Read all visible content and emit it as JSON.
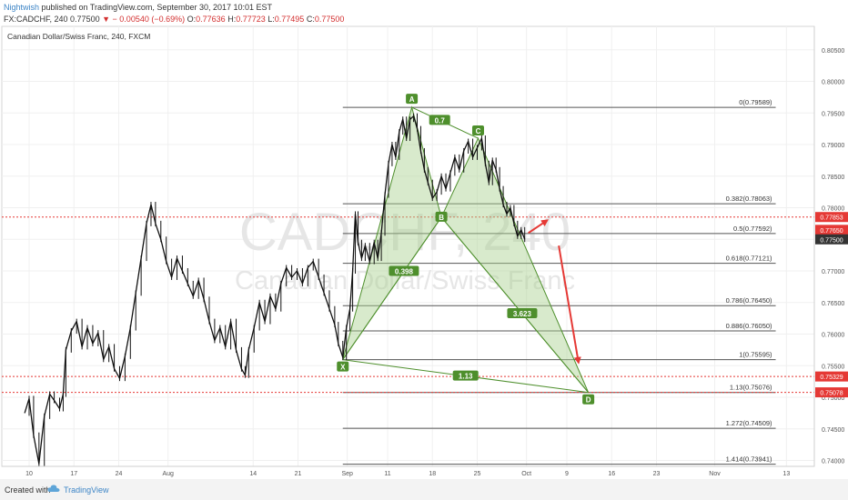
{
  "header": {
    "user": "Nightwish",
    "published": " published on TradingView.com, September 30, 2017 10:01 EST",
    "symbol": "FX:CADCHF, 240",
    "last": "0.77500",
    "change": "− 0.00540 (−0.69%)",
    "o_label": "O:",
    "o_val": "0.77636",
    "h_label": "H:",
    "h_val": "0.77723",
    "l_label": "L:",
    "l_val": "0.77495",
    "c_label": "C:",
    "c_val": "0.77500"
  },
  "footer": {
    "created": "Created with",
    "brand": "TradingView"
  },
  "colors": {
    "pattern_fill": "#a9d08e",
    "pattern_stroke": "#4e8f2c",
    "arrow": "#e53935",
    "price_tag": "#e53935",
    "last_tag": "#333333"
  },
  "chart_data": {
    "type": "candlestick",
    "title": "Canadian Dollar/Swiss Franc, 240, FXCM",
    "watermark_symbol": "CADCHF, 240",
    "watermark_name": "Canadian Dollar/Swiss Franc",
    "grid": true,
    "ylim": [
      0.7385,
      0.8095
    ],
    "y_ticks": [
      "0.80500",
      "0.80000",
      "0.79500",
      "0.79000",
      "0.78500",
      "0.78000",
      "0.77500",
      "0.77000",
      "0.76500",
      "0.76000",
      "0.75500",
      "0.75000",
      "0.74500",
      "0.74000"
    ],
    "y_tick_values": [
      0.805,
      0.8,
      0.795,
      0.79,
      0.785,
      0.78,
      0.775,
      0.77,
      0.765,
      0.76,
      0.755,
      0.75,
      0.745,
      0.74
    ],
    "x_ticks": [
      {
        "label": "10",
        "t": 0.5
      },
      {
        "label": "17",
        "t": 5.5
      },
      {
        "label": "24",
        "t": 10.5
      },
      {
        "label": "Aug",
        "t": 16
      },
      {
        "label": "14",
        "t": 25.5
      },
      {
        "label": "21",
        "t": 30.5
      },
      {
        "label": "Sep",
        "t": 36
      },
      {
        "label": "11",
        "t": 40.5
      },
      {
        "label": "18",
        "t": 45.5
      },
      {
        "label": "25",
        "t": 50.5
      },
      {
        "label": "Oct",
        "t": 56
      },
      {
        "label": "9",
        "t": 60.5
      },
      {
        "label": "16",
        "t": 65.5
      },
      {
        "label": "23",
        "t": 70.5
      },
      {
        "label": "Nov",
        "t": 77
      },
      {
        "label": "13",
        "t": 85
      }
    ],
    "price_series": [
      [
        0,
        0.7475
      ],
      [
        0.5,
        0.7498
      ],
      [
        1,
        0.744
      ],
      [
        1.6,
        0.7395
      ],
      [
        2.2,
        0.747
      ],
      [
        2.8,
        0.7505
      ],
      [
        3.3,
        0.7495
      ],
      [
        3.9,
        0.7482
      ],
      [
        4.3,
        0.7505
      ],
      [
        4.6,
        0.7575
      ],
      [
        5.2,
        0.7605
      ],
      [
        5.8,
        0.762
      ],
      [
        6.4,
        0.758
      ],
      [
        7.0,
        0.761
      ],
      [
        7.6,
        0.7585
      ],
      [
        8.2,
        0.7602
      ],
      [
        8.8,
        0.756
      ],
      [
        9.4,
        0.758
      ],
      [
        10.0,
        0.7545
      ],
      [
        10.6,
        0.753
      ],
      [
        11.2,
        0.7565
      ],
      [
        11.8,
        0.761
      ],
      [
        12.4,
        0.7665
      ],
      [
        13.0,
        0.772
      ],
      [
        13.6,
        0.7775
      ],
      [
        14.1,
        0.7805
      ],
      [
        14.6,
        0.7775
      ],
      [
        15.2,
        0.775
      ],
      [
        15.8,
        0.7715
      ],
      [
        16.4,
        0.769
      ],
      [
        17.0,
        0.772
      ],
      [
        17.6,
        0.77
      ],
      [
        18.2,
        0.768
      ],
      [
        18.8,
        0.766
      ],
      [
        19.4,
        0.7685
      ],
      [
        20.0,
        0.7655
      ],
      [
        20.6,
        0.762
      ],
      [
        21.2,
        0.759
      ],
      [
        21.8,
        0.761
      ],
      [
        22.4,
        0.758
      ],
      [
        23.0,
        0.762
      ],
      [
        23.6,
        0.7575
      ],
      [
        24.2,
        0.7545
      ],
      [
        24.6,
        0.7535
      ],
      [
        25.0,
        0.7575
      ],
      [
        25.6,
        0.761
      ],
      [
        26.2,
        0.765
      ],
      [
        26.8,
        0.762
      ],
      [
        27.4,
        0.766
      ],
      [
        28.0,
        0.764
      ],
      [
        28.6,
        0.768
      ],
      [
        29.2,
        0.7705
      ],
      [
        29.8,
        0.769
      ],
      [
        30.4,
        0.77
      ],
      [
        31.0,
        0.768
      ],
      [
        31.6,
        0.7705
      ],
      [
        32.2,
        0.7715
      ],
      [
        32.8,
        0.769
      ],
      [
        33.4,
        0.7665
      ],
      [
        34.0,
        0.764
      ],
      [
        34.6,
        0.7615
      ],
      [
        35.0,
        0.7585
      ],
      [
        35.5,
        0.7563
      ],
      [
        35.9,
        0.761
      ],
      [
        36.3,
        0.764
      ],
      [
        36.6,
        0.77
      ],
      [
        36.9,
        0.779
      ],
      [
        37.2,
        0.7745
      ],
      [
        37.6,
        0.772
      ],
      [
        38.0,
        0.774
      ],
      [
        38.5,
        0.7715
      ],
      [
        39.0,
        0.7745
      ],
      [
        39.4,
        0.772
      ],
      [
        39.8,
        0.776
      ],
      [
        40.2,
        0.782
      ],
      [
        40.6,
        0.787
      ],
      [
        41.0,
        0.79
      ],
      [
        41.4,
        0.788
      ],
      [
        41.8,
        0.792
      ],
      [
        42.2,
        0.794
      ],
      [
        42.6,
        0.791
      ],
      [
        43.0,
        0.794
      ],
      [
        43.4,
        0.7945
      ],
      [
        43.8,
        0.7925
      ],
      [
        44.2,
        0.789
      ],
      [
        44.6,
        0.786
      ],
      [
        45.0,
        0.784
      ],
      [
        45.5,
        0.7815
      ],
      [
        46.0,
        0.7825
      ],
      [
        46.5,
        0.785
      ],
      [
        47.0,
        0.783
      ],
      [
        47.5,
        0.7855
      ],
      [
        48.0,
        0.788
      ],
      [
        48.5,
        0.786
      ],
      [
        49.0,
        0.789
      ],
      [
        49.5,
        0.7905
      ],
      [
        50.0,
        0.788
      ],
      [
        50.5,
        0.7895
      ],
      [
        51.0,
        0.791
      ],
      [
        51.4,
        0.787
      ],
      [
        51.8,
        0.784
      ],
      [
        52.2,
        0.7875
      ],
      [
        52.6,
        0.786
      ],
      [
        53.0,
        0.783
      ],
      [
        53.4,
        0.7805
      ],
      [
        53.8,
        0.779
      ],
      [
        54.2,
        0.78
      ],
      [
        54.6,
        0.7775
      ],
      [
        55.0,
        0.7755
      ],
      [
        55.4,
        0.7765
      ],
      [
        55.8,
        0.775
      ]
    ],
    "pattern": {
      "name": "Bat/Gartley harmonic XABCD",
      "points": [
        {
          "label": "X",
          "t": 35.5,
          "price": 0.75595
        },
        {
          "label": "A",
          "t": 43.2,
          "price": 0.79589
        },
        {
          "label": "B",
          "t": 46.5,
          "price": 0.7785
        },
        {
          "label": "C",
          "t": 50.6,
          "price": 0.791
        },
        {
          "label": "D",
          "t": 62.9,
          "price": 0.75076
        }
      ],
      "ratios": [
        {
          "label": "0.7",
          "between": "A-C"
        },
        {
          "label": "0.398",
          "between": "X-B"
        },
        {
          "label": "3.623",
          "between": "B-D"
        },
        {
          "label": "1.13",
          "between": "X-D"
        }
      ]
    },
    "fib_levels": [
      {
        "label": "0(0.79589)",
        "price": 0.79589
      },
      {
        "label": "0.382(0.78063)",
        "price": 0.78063
      },
      {
        "label": "0.5(0.77592)",
        "price": 0.77592
      },
      {
        "label": "0.618(0.77121)",
        "price": 0.77121
      },
      {
        "label": "0.786(0.76450)",
        "price": 0.7645
      },
      {
        "label": "0.886(0.76050)",
        "price": 0.7605
      },
      {
        "label": "1(0.75595)",
        "price": 0.75595
      },
      {
        "label": "1.13(0.75076)",
        "price": 0.75076
      },
      {
        "label": "1.272(0.74509)",
        "price": 0.74509
      },
      {
        "label": "1.414(0.73941)",
        "price": 0.73941
      }
    ],
    "fib_range_t": [
      35.5,
      63.5
    ],
    "horizontal_lines": [
      {
        "price": 0.77853,
        "label": "0.77853",
        "style": "dotted"
      },
      {
        "price": 0.75329,
        "label": "0.75329",
        "style": "dotted"
      },
      {
        "price": 0.75078,
        "label": "0.75078",
        "style": "dotted"
      }
    ],
    "price_tags": [
      {
        "label": "0.77853",
        "price": 0.77853,
        "kind": "red"
      },
      {
        "label": "0.77650",
        "price": 0.7765,
        "kind": "red"
      },
      {
        "label": "0.77500",
        "price": 0.775,
        "kind": "last"
      },
      {
        "label": "0.75329",
        "price": 0.75329,
        "kind": "red"
      },
      {
        "label": "0.75078",
        "price": 0.75078,
        "kind": "red"
      }
    ],
    "projection_arrows": [
      {
        "from": {
          "t": 56.2,
          "price": 0.776
        },
        "to": {
          "t": 58.3,
          "price": 0.778
        }
      },
      {
        "from": {
          "t": 59.6,
          "price": 0.774
        },
        "to": {
          "t": 61.8,
          "price": 0.7555
        }
      }
    ]
  }
}
